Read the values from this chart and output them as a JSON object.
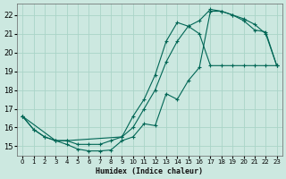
{
  "bg_color": "#cce8e0",
  "grid_color": "#aad4c8",
  "line_color": "#006655",
  "xlabel": "Humidex (Indice chaleur)",
  "xlim": [
    -0.5,
    23.5
  ],
  "ylim": [
    14.5,
    22.6
  ],
  "xticks": [
    0,
    1,
    2,
    3,
    4,
    5,
    6,
    7,
    8,
    9,
    10,
    11,
    12,
    13,
    14,
    15,
    16,
    17,
    18,
    19,
    20,
    21,
    22,
    23
  ],
  "yticks": [
    15,
    16,
    17,
    18,
    19,
    20,
    21,
    22
  ],
  "curve1_x": [
    0,
    1,
    2,
    3,
    4,
    5,
    6,
    7,
    8,
    9,
    10,
    11,
    12,
    13,
    14,
    15,
    16,
    17,
    18,
    19,
    20,
    21,
    22,
    23
  ],
  "curve1_y": [
    16.6,
    15.9,
    15.5,
    15.3,
    15.1,
    14.85,
    14.75,
    14.75,
    14.8,
    15.3,
    15.5,
    16.2,
    16.1,
    17.8,
    17.5,
    18.5,
    19.2,
    22.2,
    22.2,
    22.0,
    21.7,
    21.2,
    21.1,
    19.3
  ],
  "curve2_x": [
    0,
    1,
    2,
    3,
    4,
    5,
    6,
    7,
    8,
    9,
    10,
    11,
    12,
    13,
    14,
    15,
    16,
    17,
    18,
    19,
    20,
    21,
    22,
    23
  ],
  "curve2_y": [
    16.6,
    15.9,
    15.5,
    15.3,
    15.3,
    15.1,
    15.1,
    15.1,
    15.3,
    15.5,
    16.6,
    17.5,
    18.8,
    20.6,
    21.6,
    21.4,
    21.0,
    19.3,
    19.3,
    19.3,
    19.3,
    19.3,
    19.3,
    19.3
  ],
  "curve3_x": [
    0,
    3,
    4,
    9,
    10,
    11,
    12,
    13,
    14,
    15,
    16,
    17,
    18,
    19,
    20,
    21,
    22,
    23
  ],
  "curve3_y": [
    16.6,
    15.3,
    15.3,
    15.5,
    16.0,
    17.0,
    18.0,
    19.5,
    20.6,
    21.4,
    21.7,
    22.3,
    22.2,
    22.0,
    21.8,
    21.5,
    21.0,
    19.3
  ]
}
